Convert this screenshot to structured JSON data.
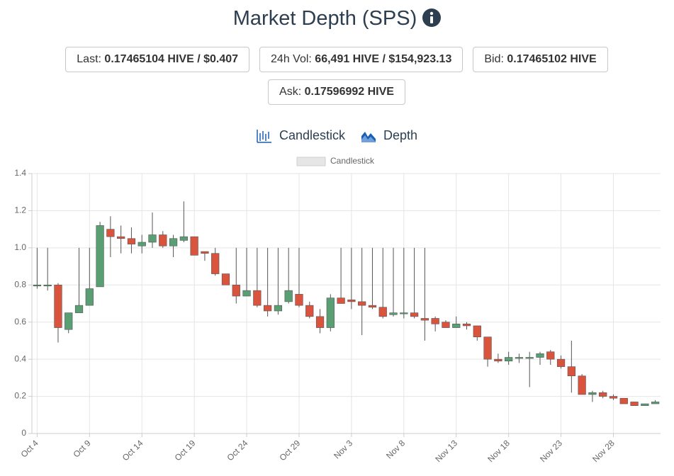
{
  "header": {
    "title": "Market Depth (SPS)"
  },
  "stats": [
    {
      "label": "Last:",
      "value": "0.17465104 HIVE / $0.407"
    },
    {
      "label": "24h Vol:",
      "value": "66,491 HIVE / $154,923.13"
    },
    {
      "label": "Bid:",
      "value": "0.17465102 HIVE"
    },
    {
      "label": "Ask:",
      "value": "0.17596992 HIVE"
    }
  ],
  "tabs": [
    "Candlestick",
    "Depth"
  ],
  "chart_data": {
    "type": "candlestick",
    "legend": "Candlestick",
    "up_color": "#5a9e73",
    "down_color": "#d9533d",
    "wick_color": "#555555",
    "categories": [
      "Oct 4",
      null,
      null,
      null,
      null,
      "Oct 9",
      null,
      null,
      null,
      null,
      "Oct 14",
      null,
      null,
      null,
      null,
      "Oct 19",
      null,
      null,
      null,
      null,
      "Oct 24",
      null,
      null,
      null,
      null,
      "Oct 29",
      null,
      null,
      null,
      null,
      "Nov 3",
      null,
      null,
      null,
      null,
      "Nov 8",
      null,
      null,
      null,
      null,
      "Nov 13",
      null,
      null,
      null,
      null,
      "Nov 18",
      null,
      null,
      null,
      null,
      "Nov 23",
      null,
      null,
      null,
      null,
      "Nov 28",
      null,
      null,
      null,
      null
    ],
    "open": [
      0.8,
      0.8,
      0.8,
      0.56,
      0.65,
      0.69,
      0.79,
      1.1,
      1.06,
      1.05,
      1.01,
      1.03,
      1.07,
      1.01,
      1.04,
      1.06,
      0.98,
      0.97,
      0.86,
      0.8,
      0.74,
      0.77,
      0.69,
      0.66,
      0.71,
      0.75,
      0.69,
      0.63,
      0.57,
      0.73,
      0.72,
      0.71,
      0.69,
      0.68,
      0.64,
      0.65,
      0.65,
      0.62,
      0.62,
      0.6,
      0.57,
      0.59,
      0.58,
      0.52,
      0.4,
      0.39,
      0.41,
      0.41,
      0.41,
      0.44,
      0.4,
      0.36,
      0.31,
      0.21,
      0.22,
      0.2,
      0.19,
      0.17,
      0.15,
      0.16
    ],
    "high": [
      1.0,
      1.0,
      0.81,
      0.65,
      1.0,
      1.0,
      1.14,
      1.17,
      1.12,
      1.11,
      1.07,
      1.19,
      1.09,
      1.07,
      1.25,
      1.06,
      0.98,
      1.0,
      0.86,
      1.0,
      1.0,
      1.0,
      1.0,
      1.0,
      1.0,
      1.0,
      0.71,
      0.67,
      0.75,
      1.0,
      1.0,
      1.0,
      1.0,
      1.0,
      1.0,
      1.0,
      1.0,
      1.0,
      0.63,
      0.61,
      0.63,
      0.6,
      0.58,
      0.52,
      0.43,
      0.44,
      0.43,
      0.44,
      0.44,
      0.45,
      0.42,
      0.5,
      0.32,
      0.23,
      0.23,
      0.21,
      0.19,
      0.17,
      0.16,
      0.18
    ],
    "low": [
      0.78,
      0.77,
      0.49,
      0.54,
      0.65,
      0.69,
      0.79,
      0.95,
      0.97,
      0.97,
      0.97,
      1.0,
      1.0,
      0.95,
      1.03,
      0.96,
      0.93,
      0.85,
      0.8,
      0.7,
      0.74,
      0.68,
      0.63,
      0.64,
      0.7,
      0.68,
      0.62,
      0.54,
      0.55,
      0.7,
      0.67,
      0.53,
      0.67,
      0.62,
      0.63,
      0.62,
      0.62,
      0.5,
      0.55,
      0.57,
      0.57,
      0.56,
      0.5,
      0.36,
      0.38,
      0.37,
      0.38,
      0.25,
      0.37,
      0.37,
      0.35,
      0.22,
      0.21,
      0.17,
      0.19,
      0.18,
      0.16,
      0.15,
      0.15,
      0.16
    ],
    "close": [
      0.8,
      0.8,
      0.57,
      0.65,
      0.69,
      0.78,
      1.12,
      1.06,
      1.05,
      1.02,
      1.03,
      1.07,
      1.01,
      1.05,
      1.06,
      0.96,
      0.97,
      0.86,
      0.8,
      0.74,
      0.77,
      0.69,
      0.66,
      0.69,
      0.77,
      0.69,
      0.63,
      0.57,
      0.73,
      0.7,
      0.71,
      0.69,
      0.68,
      0.63,
      0.65,
      0.65,
      0.63,
      0.61,
      0.59,
      0.57,
      0.59,
      0.58,
      0.52,
      0.4,
      0.39,
      0.41,
      0.41,
      0.41,
      0.43,
      0.4,
      0.36,
      0.31,
      0.21,
      0.22,
      0.2,
      0.19,
      0.16,
      0.15,
      0.16,
      0.17
    ],
    "ylim": [
      0,
      1.4
    ],
    "yticks": [
      0,
      0.2,
      0.4,
      0.6,
      0.8,
      {
        "value": 1,
        "label": "1.0"
      },
      1.2,
      1.4
    ],
    "grid": true
  }
}
